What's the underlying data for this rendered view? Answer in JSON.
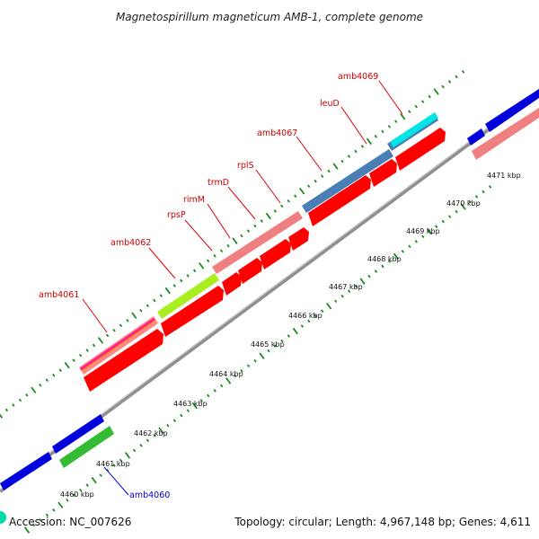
{
  "title": "Magnetospirillum magneticum AMB-1, complete genome",
  "accession": "Accession: NC_007626",
  "summary": "Topology: circular; Length: 4,967,148 bp; Genes: 4,611",
  "colors": {
    "backbone": "#999999",
    "dots": "#1f8a1f",
    "label_red": "#cc0000",
    "label_blue": "#0000cc",
    "callout_red": "#e00000",
    "callout_blue": "#0000ff"
  },
  "scale_ticks": [
    {
      "label": "4460 kbp"
    },
    {
      "label": "4461 kbp"
    },
    {
      "label": "4462 kbp"
    },
    {
      "label": "4463 kbp"
    },
    {
      "label": "4464 kbp"
    },
    {
      "label": "4465 kbp"
    },
    {
      "label": "4466 kbp"
    },
    {
      "label": "4467 kbp"
    },
    {
      "label": "4468 kbp"
    },
    {
      "label": "4469 kbp"
    },
    {
      "label": "4470 kbp"
    },
    {
      "label": "4471 kbp"
    }
  ],
  "gene_labels": [
    {
      "name": "amb4061",
      "color": "label_red"
    },
    {
      "name": "amb4062",
      "color": "label_red"
    },
    {
      "name": "rpsP",
      "color": "label_red"
    },
    {
      "name": "rimM",
      "color": "label_red"
    },
    {
      "name": "trmD",
      "color": "label_red"
    },
    {
      "name": "rplS",
      "color": "label_red"
    },
    {
      "name": "amb4067",
      "color": "label_red"
    },
    {
      "name": "leuD",
      "color": "label_red"
    },
    {
      "name": "amb4069",
      "color": "label_red"
    },
    {
      "name": "amb4060",
      "color": "label_blue"
    }
  ]
}
